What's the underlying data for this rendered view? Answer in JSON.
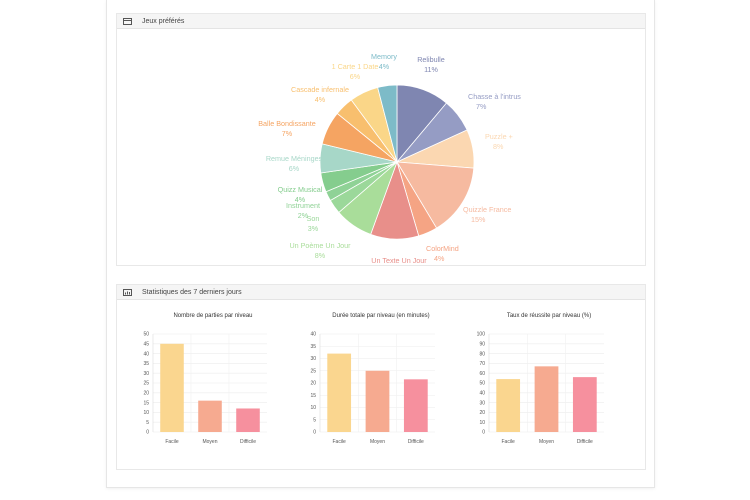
{
  "games_panel": {
    "title": "Jeux préférés",
    "chart_data": {
      "type": "pie",
      "slices": [
        {
          "label": "Relibulle",
          "pct": "11%",
          "value": 11,
          "color": "#7f86b1"
        },
        {
          "label": "Chasse à l'intrus",
          "pct": "7%",
          "value": 7,
          "color": "#959cc4"
        },
        {
          "label": "Puzzle +",
          "pct": "8%",
          "value": 8,
          "color": "#fbd7b1"
        },
        {
          "label": "Quizzle France",
          "pct": "15%",
          "value": 15,
          "color": "#f6baa0"
        },
        {
          "label": "ColorMind",
          "pct": "4%",
          "value": 4,
          "color": "#f5a484"
        },
        {
          "label": "Un Texte Un Jour",
          "pct": "10%",
          "value": 10,
          "color": "#e88f8a"
        },
        {
          "label": "Un Poème Un Jour",
          "pct": "8%",
          "value": 8,
          "color": "#a9dd9a"
        },
        {
          "label": "Son",
          "pct": "3%",
          "value": 3,
          "color": "#9bd89a"
        },
        {
          "label": "Instrument",
          "pct": "2%",
          "value": 2,
          "color": "#8fd296"
        },
        {
          "label": "Quizz Musical",
          "pct": "4%",
          "value": 4,
          "color": "#85cd8e"
        },
        {
          "label": "Remue Méninges",
          "pct": "6%",
          "value": 6,
          "color": "#a7d7c8"
        },
        {
          "label": "Balle Bondissante",
          "pct": "7%",
          "value": 7,
          "color": "#f5a462"
        },
        {
          "label": "Cascade infernale",
          "pct": "4%",
          "value": 4,
          "color": "#f8bf6e"
        },
        {
          "label": "1 Carte 1 Date",
          "pct": "6%",
          "value": 6,
          "color": "#fad688"
        },
        {
          "label": "Memory",
          "pct": "4%",
          "value": 4,
          "color": "#7dbbc8"
        }
      ]
    }
  },
  "stats_panel": {
    "title": "Statistiques des 7 derniers jours",
    "chart_data": [
      {
        "type": "bar",
        "title": "Nombre de parties par niveau",
        "categories": [
          "Facile",
          "Moyen",
          "Difficile"
        ],
        "values": [
          45,
          16,
          12
        ],
        "ylim": [
          0,
          50
        ],
        "yticks": [
          0,
          5,
          10,
          15,
          20,
          25,
          30,
          35,
          40,
          45,
          50
        ],
        "colors": [
          "#fad68f",
          "#f6aa90",
          "#f6909e"
        ]
      },
      {
        "type": "bar",
        "title": "Durée totale par niveau (en minutes)",
        "categories": [
          "Facile",
          "Moyen",
          "Difficile"
        ],
        "values": [
          32,
          25,
          21.5
        ],
        "ylim": [
          0,
          40
        ],
        "yticks": [
          0,
          5,
          10,
          15,
          20,
          25,
          30,
          35,
          40
        ],
        "colors": [
          "#fad68f",
          "#f6aa90",
          "#f6909e"
        ]
      },
      {
        "type": "bar",
        "title": "Taux de réussite par niveau (%)",
        "categories": [
          "Facile",
          "Moyen",
          "Difficile"
        ],
        "values": [
          54,
          67,
          56
        ],
        "ylim": [
          0,
          100
        ],
        "yticks": [
          0,
          10,
          20,
          30,
          40,
          50,
          60,
          70,
          80,
          90,
          100
        ],
        "colors": [
          "#fad68f",
          "#f6aa90",
          "#f6909e"
        ]
      }
    ]
  }
}
